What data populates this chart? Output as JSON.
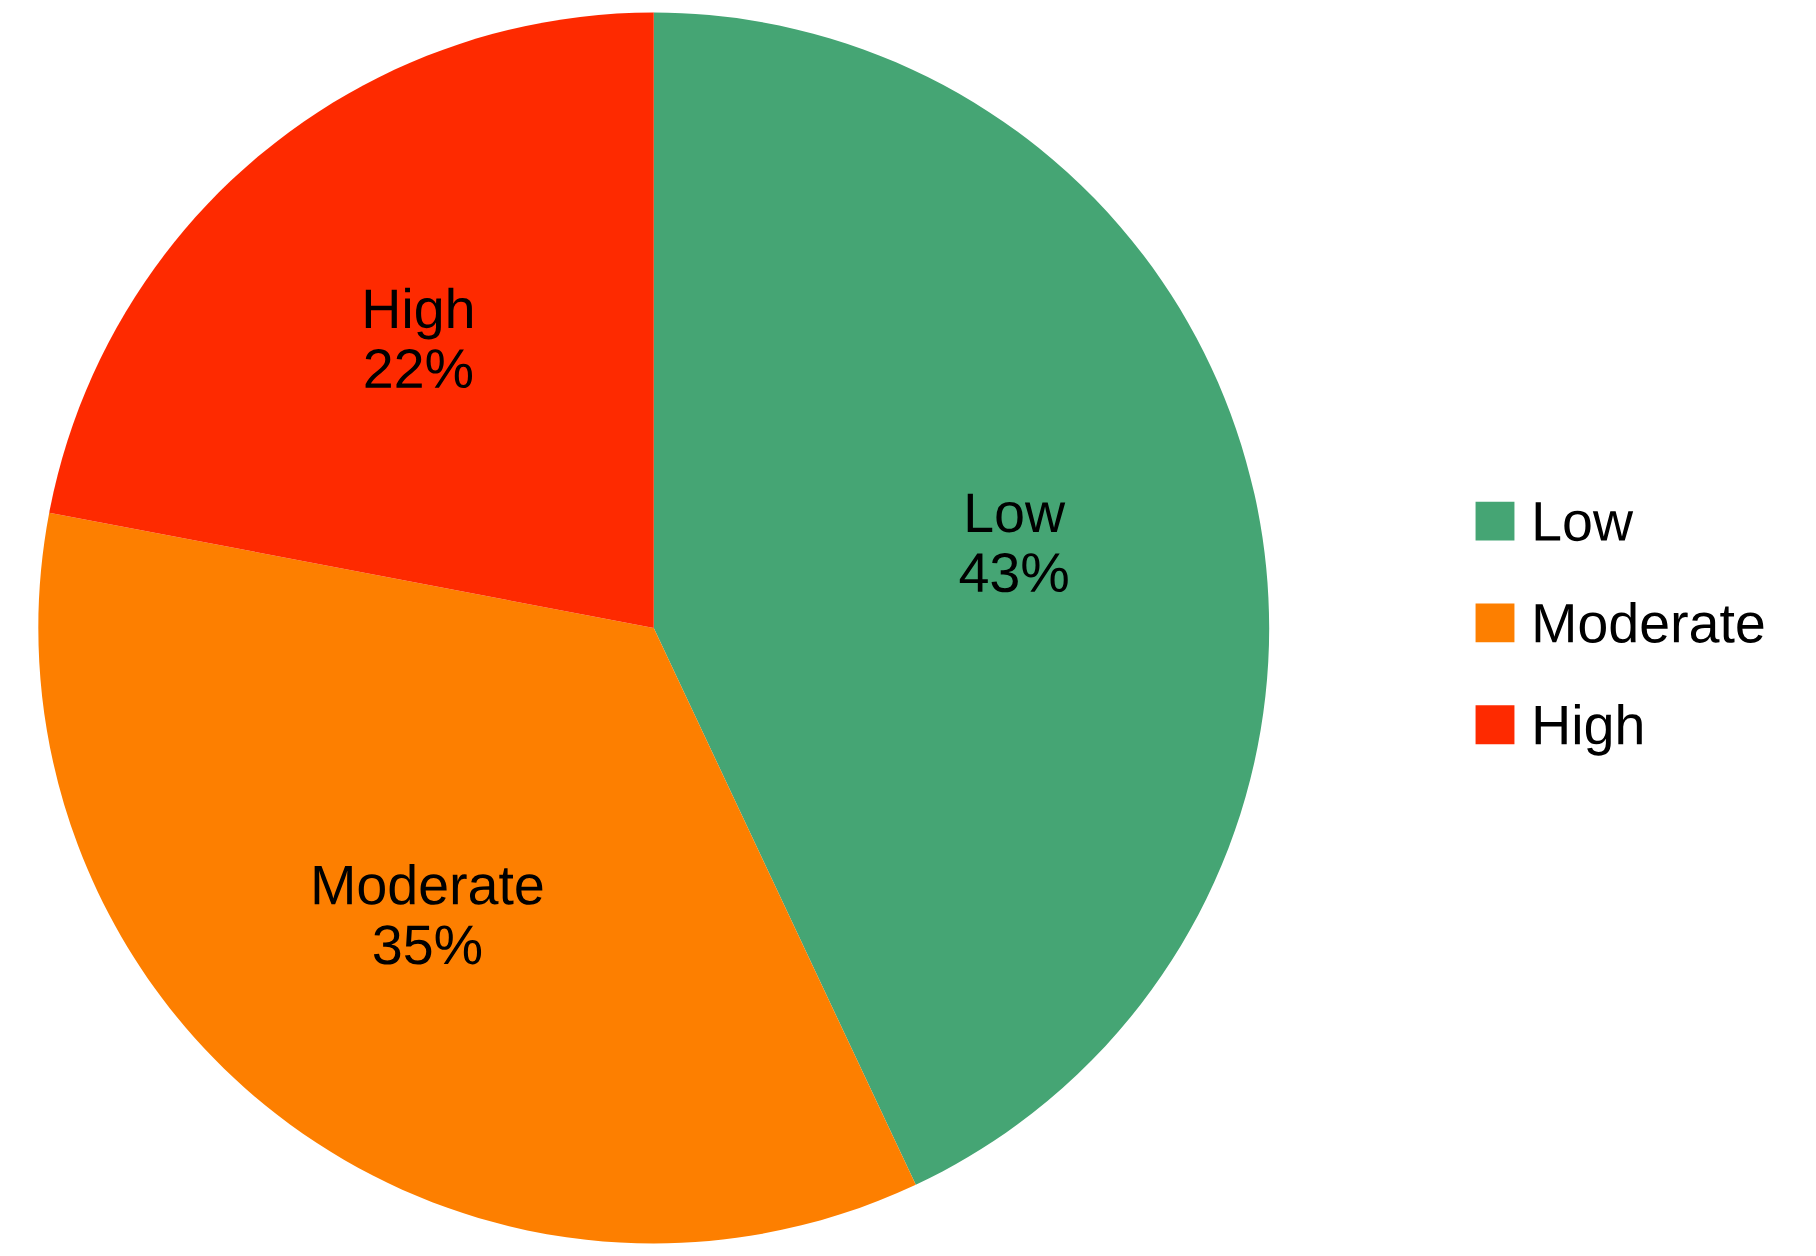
{
  "chart_data": {
    "type": "pie",
    "categories": [
      "Low",
      "Moderate",
      "High"
    ],
    "values": [
      43,
      35,
      22
    ],
    "colors": [
      "#45a574",
      "#fd7f00",
      "#fe2a00"
    ],
    "value_labels": [
      "43%",
      "35%",
      "22%"
    ],
    "legend": "right"
  }
}
